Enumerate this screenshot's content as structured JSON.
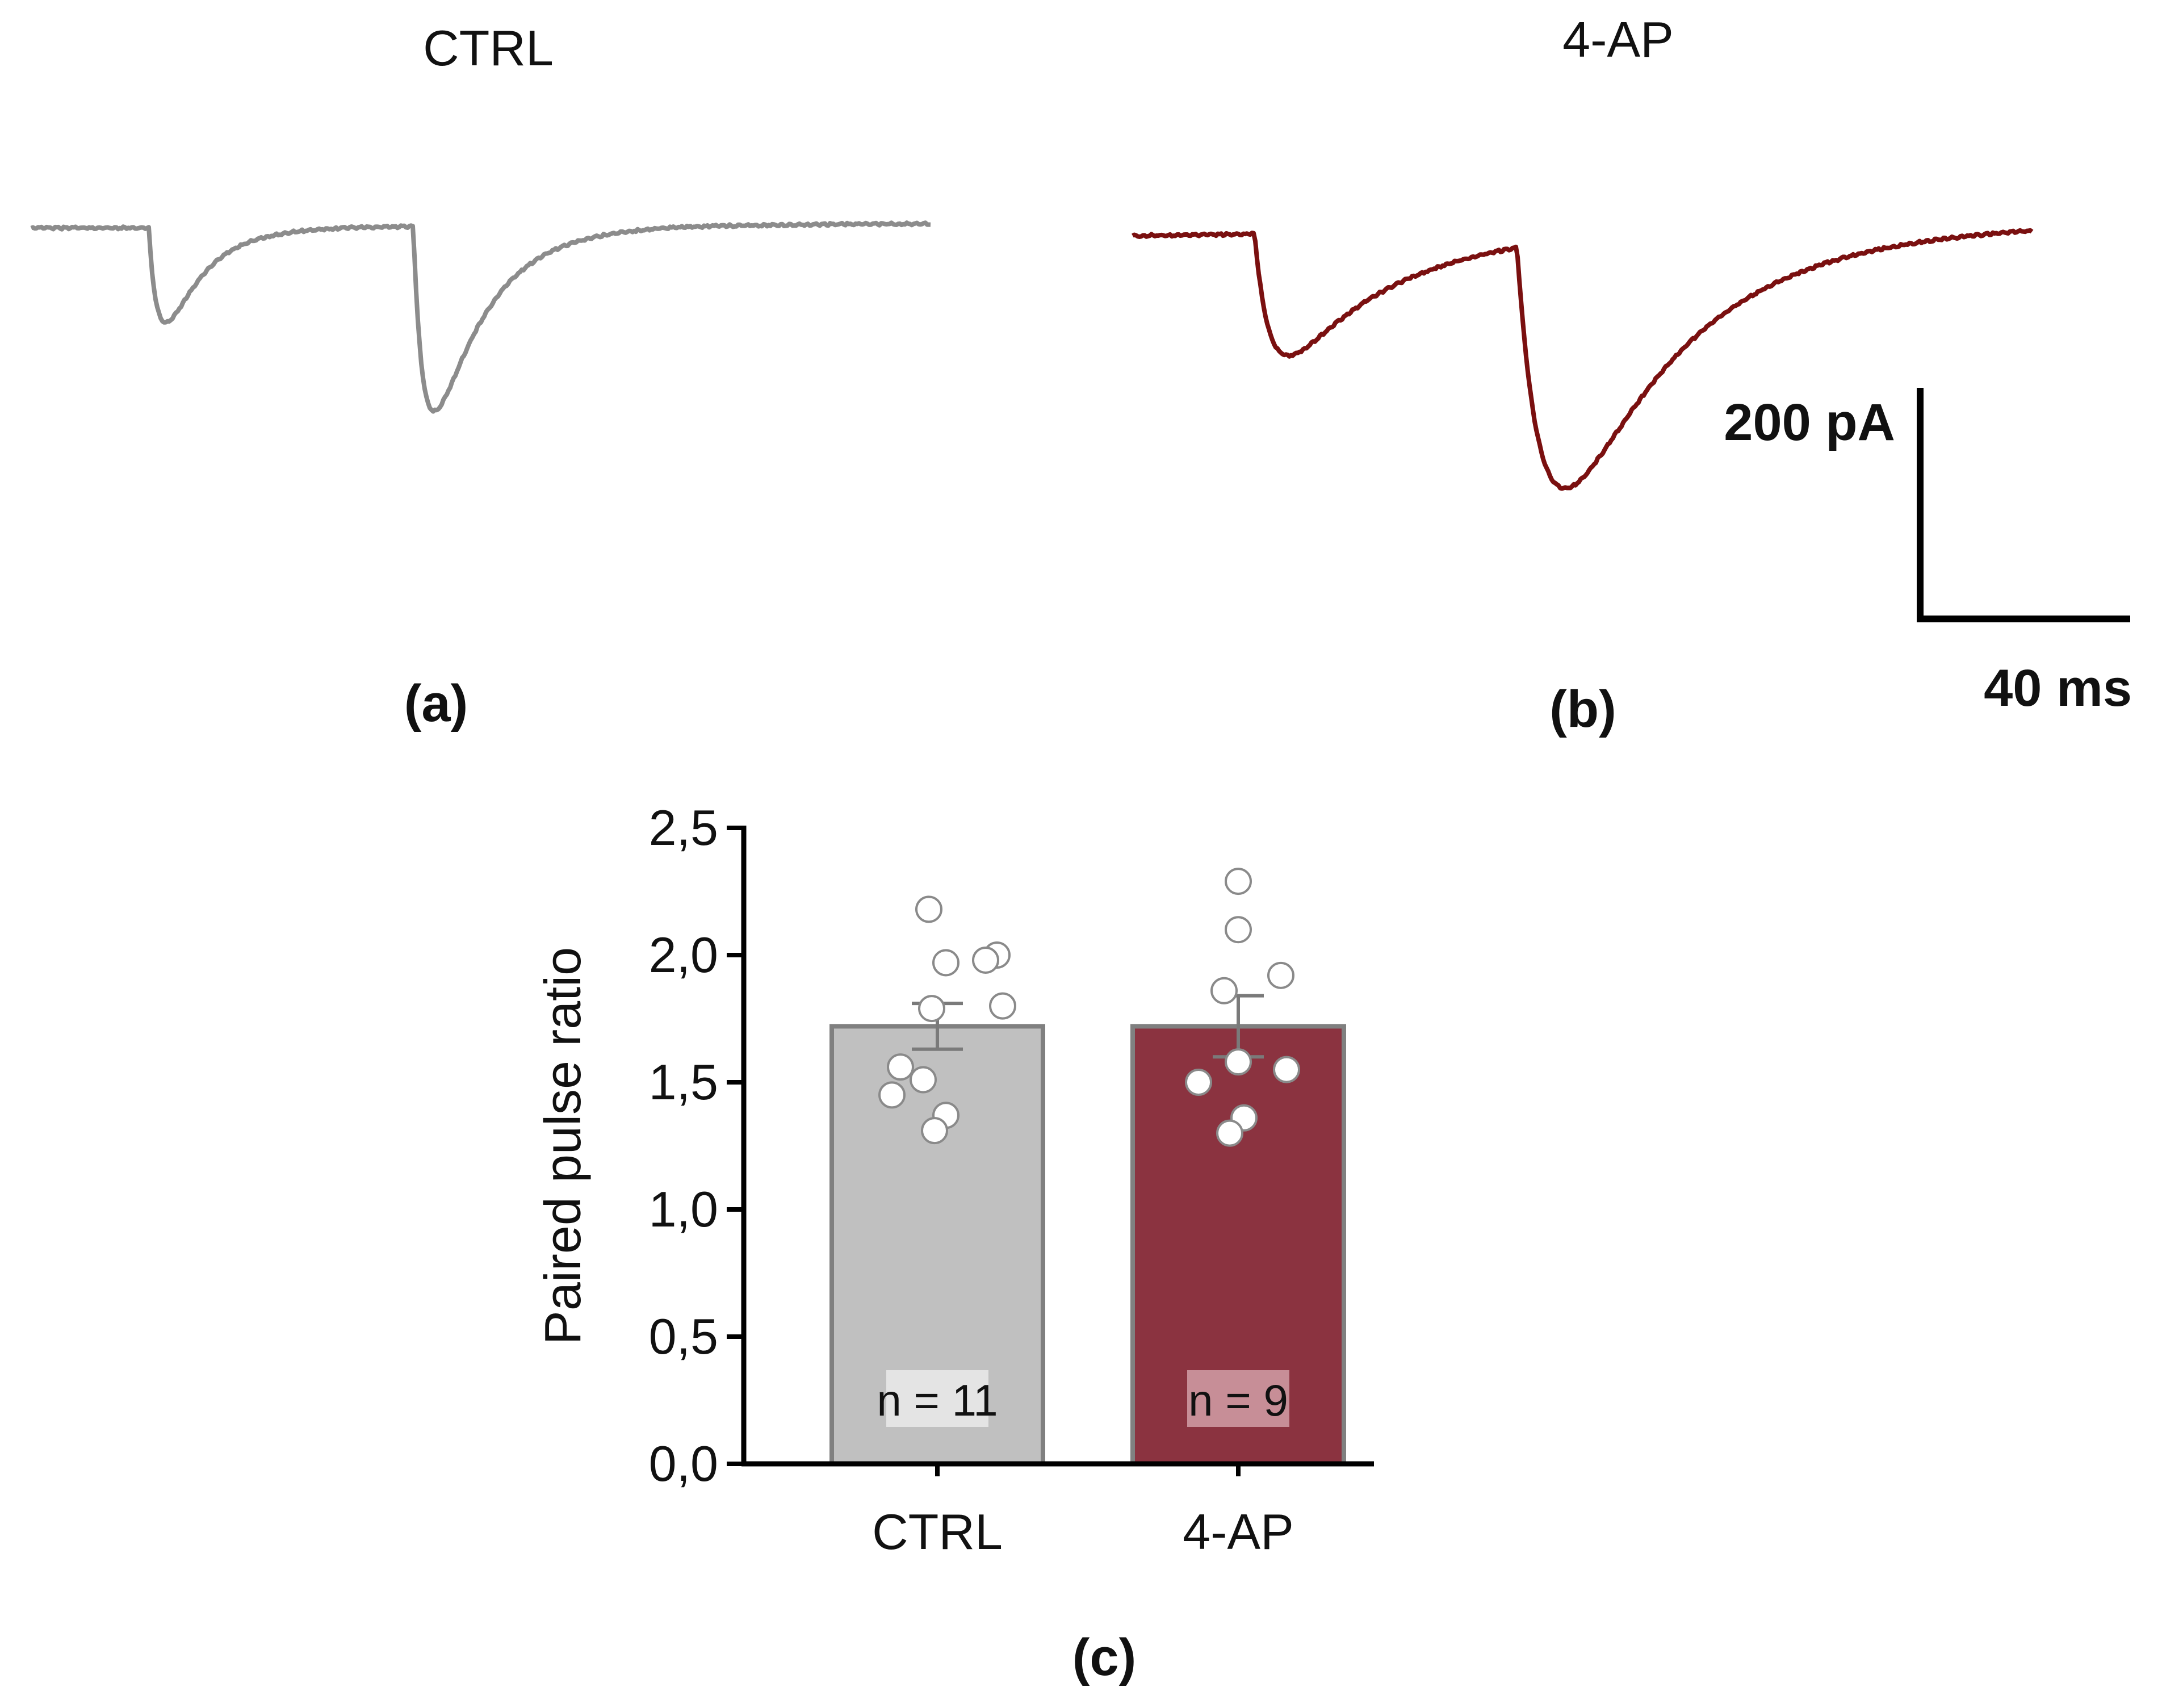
{
  "panel_a": {
    "title": "CTRL",
    "letter": "(a)",
    "trace_color": "#8c8c8c"
  },
  "panel_b": {
    "title": "4-AP",
    "letter": "(b)",
    "trace_color": "#7a1010"
  },
  "scale_bar": {
    "y_label": "200 pA",
    "x_label": "40 ms"
  },
  "panel_c": {
    "letter": "(c)"
  },
  "chart_data": {
    "type": "bar",
    "title": "",
    "xlabel": "",
    "ylabel": "Paired pulse ratio",
    "ylim": [
      0,
      2.5
    ],
    "yticks": [
      "0,0",
      "0,5",
      "1,0",
      "1,5",
      "2,0",
      "2,5"
    ],
    "categories": [
      "CTRL",
      "4-AP"
    ],
    "values": [
      1.72,
      1.72
    ],
    "sem": [
      0.09,
      0.12
    ],
    "n_labels": [
      "n = 11",
      "n = 9"
    ],
    "bar_colors": [
      "#c0c0c0",
      "#8b3340"
    ],
    "points": [
      [
        2.18,
        1.97,
        2.0,
        1.98,
        1.79,
        1.8,
        1.56,
        1.51,
        1.45,
        1.37,
        1.31
      ],
      [
        2.29,
        2.1,
        1.92,
        1.86,
        1.58,
        1.55,
        1.5,
        1.36,
        1.3
      ]
    ]
  }
}
